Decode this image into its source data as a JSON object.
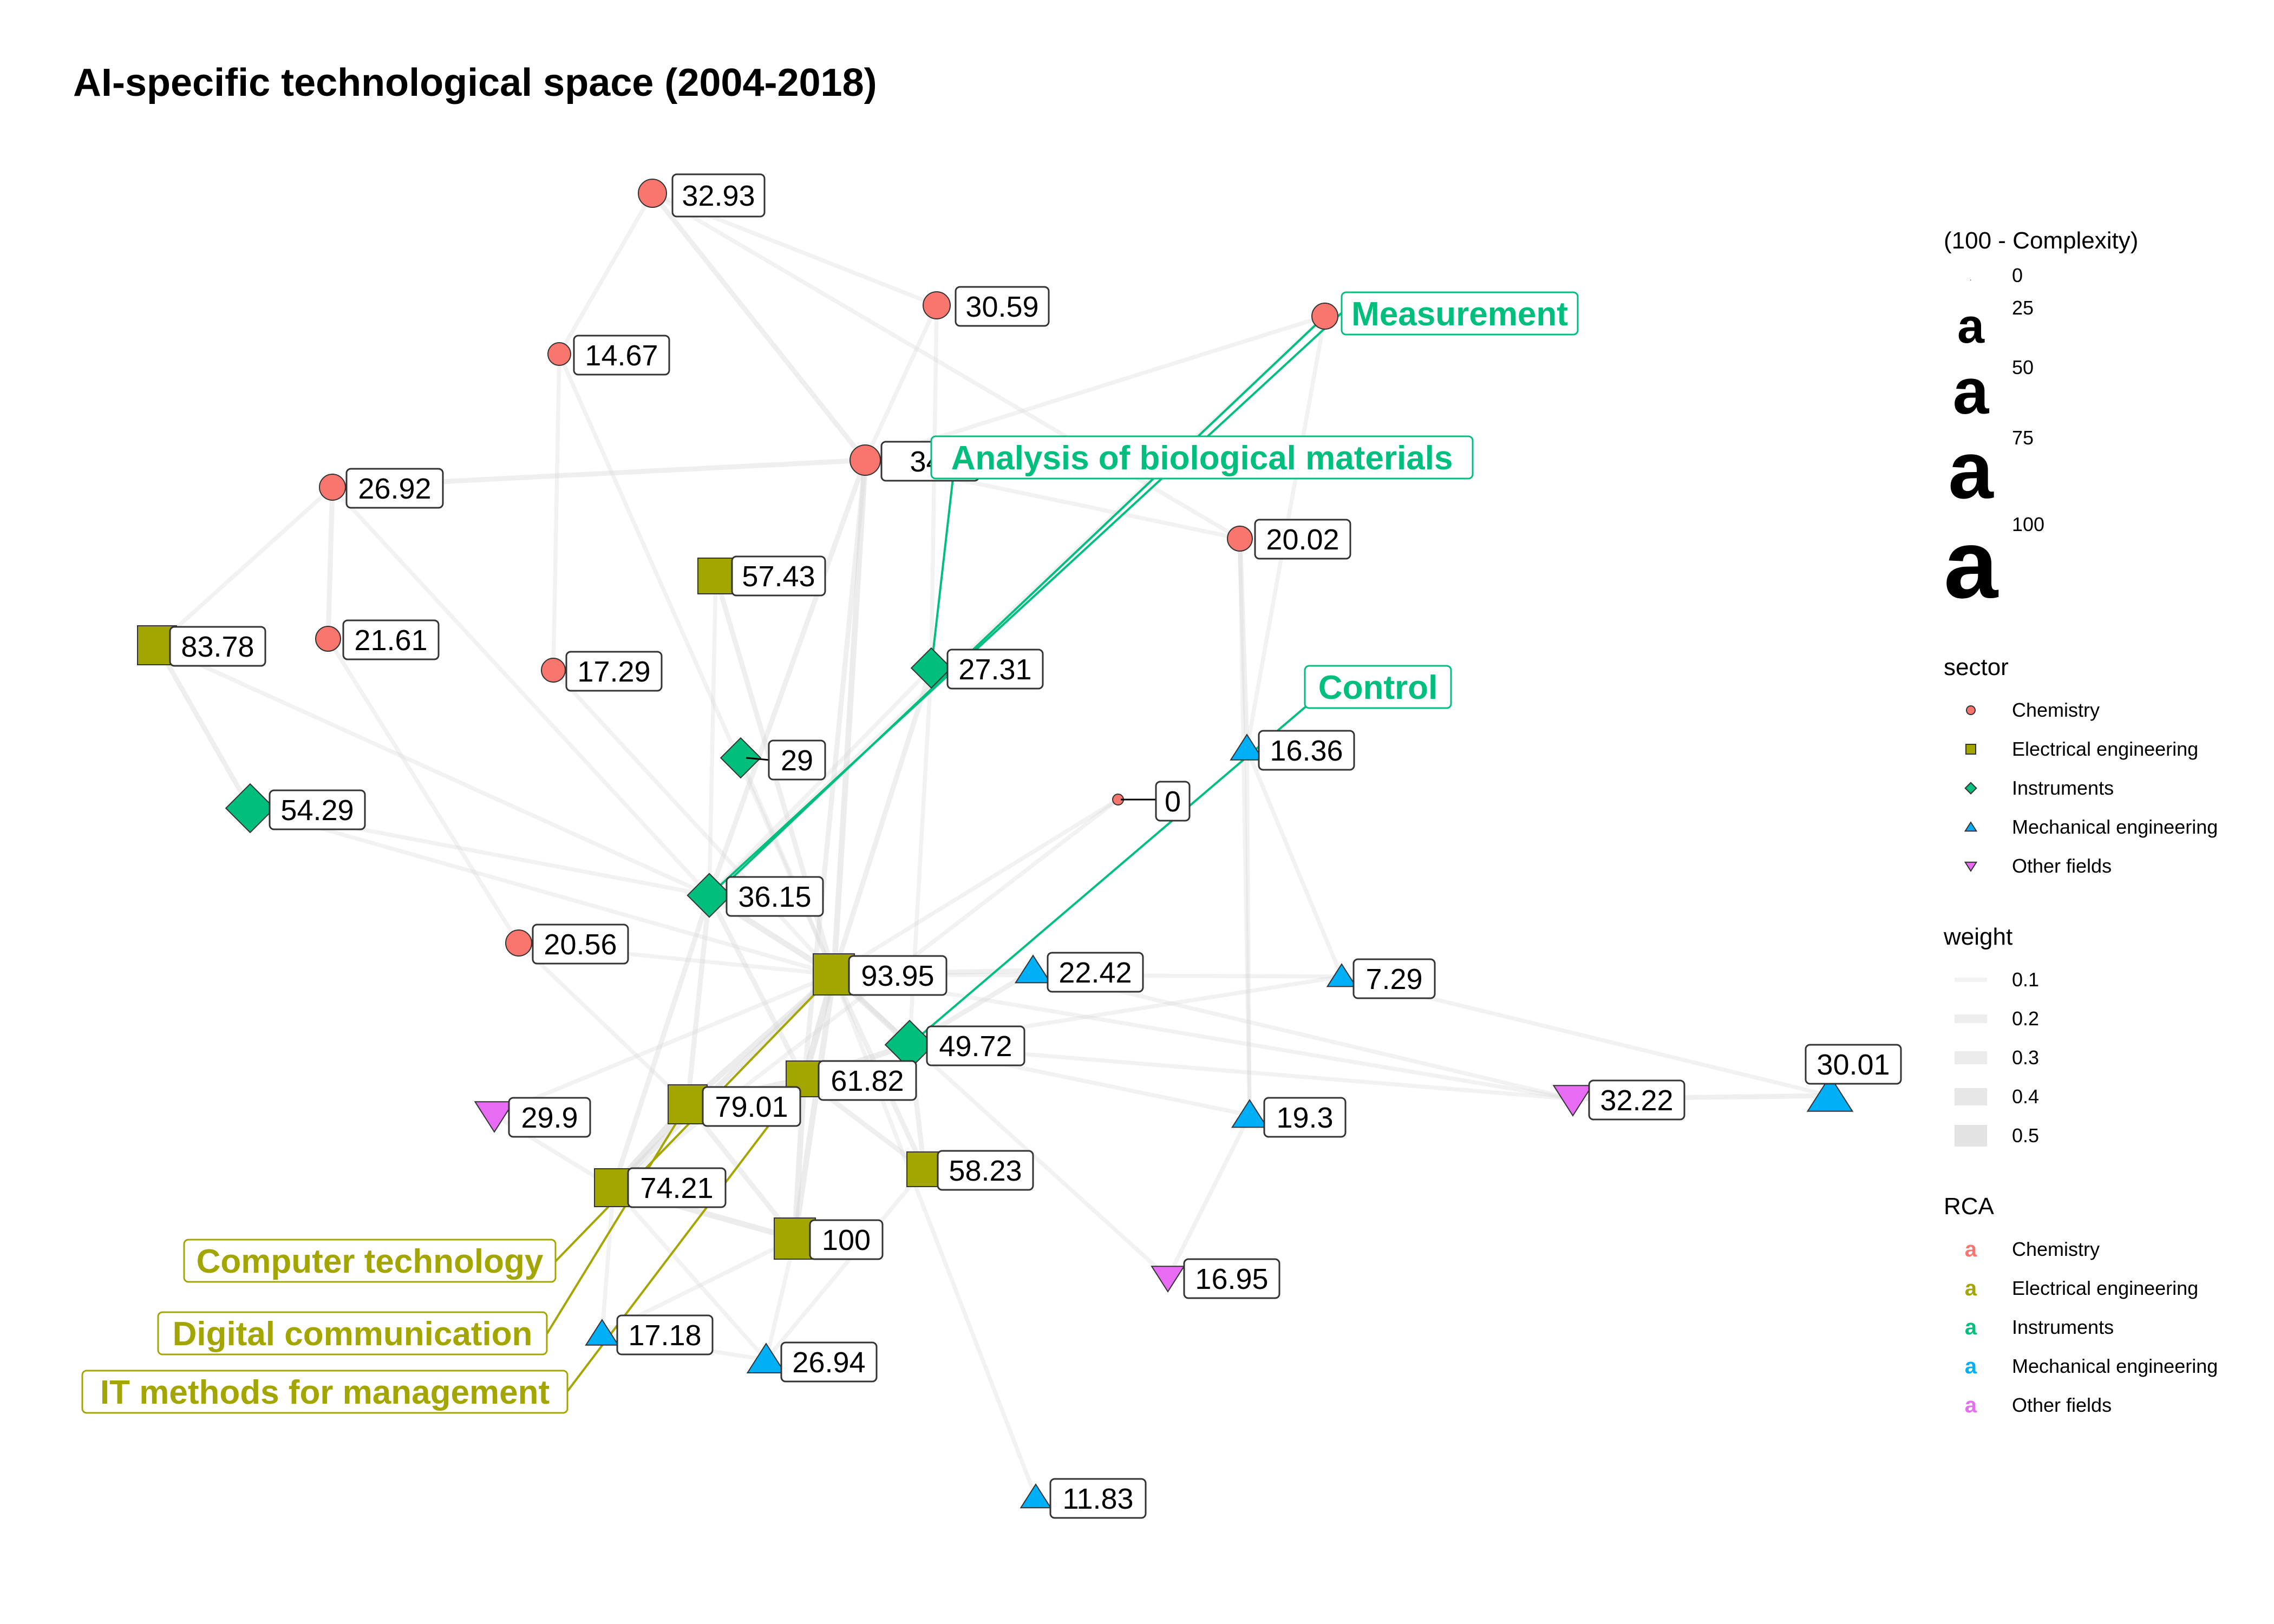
{
  "title": "AI-specific technological space (2004-2018)",
  "colors": {
    "Chemistry": "#F8766D",
    "Electrical engineering": "#A3A500",
    "Instruments": "#00BF7D",
    "Mechanical engineering": "#00B0F6",
    "Other fields": "#E76BF3",
    "edge": "#d9d9d9"
  },
  "shapes": {
    "Chemistry": "circle",
    "Electrical engineering": "square",
    "Instruments": "diamond",
    "Mechanical engineering": "triangle-up",
    "Other fields": "triangle-down"
  },
  "nodes": [
    {
      "id": "n1",
      "label": "32.93",
      "sector": "Chemistry"
    },
    {
      "id": "n2",
      "label": "30.59",
      "sector": "Chemistry"
    },
    {
      "id": "n3",
      "label": "14.67",
      "sector": "Chemistry"
    },
    {
      "id": "n4",
      "label": "",
      "sector": "Chemistry"
    },
    {
      "id": "n5",
      "label": "34.",
      "sector": "Chemistry"
    },
    {
      "id": "n6",
      "label": "26.92",
      "sector": "Chemistry"
    },
    {
      "id": "n7",
      "label": "20.02",
      "sector": "Chemistry"
    },
    {
      "id": "n8",
      "label": "57.43",
      "sector": "Electrical engineering"
    },
    {
      "id": "n9",
      "label": "83.78",
      "sector": "Electrical engineering"
    },
    {
      "id": "n10",
      "label": "21.61",
      "sector": "Chemistry"
    },
    {
      "id": "n11",
      "label": "17.29",
      "sector": "Chemistry"
    },
    {
      "id": "n12",
      "label": "27.31",
      "sector": "Instruments"
    },
    {
      "id": "n13",
      "label": "29",
      "sector": "Instruments"
    },
    {
      "id": "n14",
      "label": "16.36",
      "sector": "Mechanical engineering"
    },
    {
      "id": "n15",
      "label": "54.29",
      "sector": "Instruments"
    },
    {
      "id": "n16",
      "label": "0",
      "sector": "Chemistry"
    },
    {
      "id": "n17",
      "label": "36.15",
      "sector": "Instruments"
    },
    {
      "id": "n18",
      "label": "20.56",
      "sector": "Chemistry"
    },
    {
      "id": "n19",
      "label": "93.95",
      "sector": "Electrical engineering"
    },
    {
      "id": "n20",
      "label": "22.42",
      "sector": "Mechanical engineering"
    },
    {
      "id": "n21",
      "label": "7.29",
      "sector": "Mechanical engineering"
    },
    {
      "id": "n22",
      "label": "49.72",
      "sector": "Instruments"
    },
    {
      "id": "n23",
      "label": "61.82",
      "sector": "Electrical engineering"
    },
    {
      "id": "n24",
      "label": "79.01",
      "sector": "Electrical engineering"
    },
    {
      "id": "n25",
      "label": "29.9",
      "sector": "Other fields"
    },
    {
      "id": "n26",
      "label": "32.22",
      "sector": "Other fields"
    },
    {
      "id": "n27",
      "label": "30.01",
      "sector": "Mechanical engineering"
    },
    {
      "id": "n28",
      "label": "19.3",
      "sector": "Mechanical engineering"
    },
    {
      "id": "n29",
      "label": "74.21",
      "sector": "Electrical engineering"
    },
    {
      "id": "n30",
      "label": "58.23",
      "sector": "Electrical engineering"
    },
    {
      "id": "n31",
      "label": "100",
      "sector": "Electrical engineering"
    },
    {
      "id": "n32",
      "label": "16.95",
      "sector": "Other fields"
    },
    {
      "id": "n33",
      "label": "17.18",
      "sector": "Mechanical engineering"
    },
    {
      "id": "n34",
      "label": "26.94",
      "sector": "Mechanical engineering"
    },
    {
      "id": "n35",
      "label": "11.83",
      "sector": "Mechanical engineering"
    }
  ],
  "edges": [
    [
      "n1",
      "n3",
      0.1
    ],
    [
      "n1",
      "n5",
      0.2
    ],
    [
      "n1",
      "n2",
      0.1
    ],
    [
      "n1",
      "n7",
      0.1
    ],
    [
      "n3",
      "n11",
      0.1
    ],
    [
      "n3",
      "n19",
      0.1
    ],
    [
      "n2",
      "n5",
      0.1
    ],
    [
      "n2",
      "n12",
      0.1
    ],
    [
      "n5",
      "n4",
      0.1
    ],
    [
      "n5",
      "n7",
      0.1
    ],
    [
      "n6",
      "n5",
      0.2
    ],
    [
      "n6",
      "n9",
      0.1
    ],
    [
      "n6",
      "n10",
      0.2
    ],
    [
      "n6",
      "n17",
      0.1
    ],
    [
      "n9",
      "n15",
      0.2
    ],
    [
      "n9",
      "n17",
      0.1
    ],
    [
      "n15",
      "n17",
      0.1
    ],
    [
      "n15",
      "n19",
      0.1
    ],
    [
      "n10",
      "n18",
      0.1
    ],
    [
      "n11",
      "n19",
      0.1
    ],
    [
      "n8",
      "n19",
      0.2
    ],
    [
      "n8",
      "n17",
      0.1
    ],
    [
      "n5",
      "n19",
      0.3
    ],
    [
      "n5",
      "n23",
      0.2
    ],
    [
      "n5",
      "n17",
      0.2
    ],
    [
      "n12",
      "n19",
      0.2
    ],
    [
      "n12",
      "n22",
      0.1
    ],
    [
      "n13",
      "n19",
      0.1
    ],
    [
      "n7",
      "n14",
      0.2
    ],
    [
      "n7",
      "n28",
      0.1
    ],
    [
      "n4",
      "n14",
      0.1
    ],
    [
      "n4",
      "n17",
      0.1
    ],
    [
      "n14",
      "n21",
      0.1
    ],
    [
      "n14",
      "n28",
      0.1
    ],
    [
      "n16",
      "n19",
      0.1
    ],
    [
      "n16",
      "n29",
      0.1
    ],
    [
      "n17",
      "n19",
      0.3
    ],
    [
      "n17",
      "n24",
      0.2
    ],
    [
      "n17",
      "n29",
      0.2
    ],
    [
      "n17",
      "n23",
      0.2
    ],
    [
      "n18",
      "n19",
      0.1
    ],
    [
      "n18",
      "n24",
      0.1
    ],
    [
      "n19",
      "n22",
      0.3
    ],
    [
      "n19",
      "n23",
      0.4
    ],
    [
      "n19",
      "n24",
      0.3
    ],
    [
      "n19",
      "n29",
      0.3
    ],
    [
      "n19",
      "n31",
      0.3
    ],
    [
      "n19",
      "n30",
      0.2
    ],
    [
      "n19",
      "n20",
      0.2
    ],
    [
      "n19",
      "n21",
      0.1
    ],
    [
      "n19",
      "n26",
      0.1
    ],
    [
      "n19",
      "n32",
      0.1
    ],
    [
      "n19",
      "n35",
      0.1
    ],
    [
      "n22",
      "n23",
      0.3
    ],
    [
      "n22",
      "n20",
      0.2
    ],
    [
      "n22",
      "n21",
      0.1
    ],
    [
      "n22",
      "n28",
      0.1
    ],
    [
      "n22",
      "n26",
      0.1
    ],
    [
      "n23",
      "n24",
      0.3
    ],
    [
      "n23",
      "n31",
      0.3
    ],
    [
      "n23",
      "n30",
      0.2
    ],
    [
      "n24",
      "n29",
      0.4
    ],
    [
      "n24",
      "n31",
      0.2
    ],
    [
      "n29",
      "n31",
      0.3
    ],
    [
      "n29",
      "n25",
      0.1
    ],
    [
      "n29",
      "n33",
      0.1
    ],
    [
      "n29",
      "n34",
      0.1
    ],
    [
      "n31",
      "n34",
      0.1
    ],
    [
      "n31",
      "n33",
      0.1
    ],
    [
      "n30",
      "n22",
      0.2
    ],
    [
      "n30",
      "n34",
      0.1
    ],
    [
      "n26",
      "n27",
      0.2
    ],
    [
      "n21",
      "n27",
      0.1
    ],
    [
      "n28",
      "n32",
      0.1
    ],
    [
      "n33",
      "n34",
      0.1
    ],
    [
      "n25",
      "n19",
      0.1
    ],
    [
      "n20",
      "n26",
      0.1
    ],
    [
      "n12",
      "n17",
      0.1
    ]
  ],
  "callouts": [
    {
      "id": "c1",
      "text": "Measurement",
      "sector": "Instruments",
      "from": "n17",
      "to": "n4"
    },
    {
      "id": "c2",
      "text": "Analysis of biological materials",
      "sector": "Instruments",
      "from": "n12"
    },
    {
      "id": "c3",
      "text": "Control",
      "sector": "Instruments",
      "from": "n22"
    },
    {
      "id": "c4",
      "text": "Computer technology",
      "sector": "Electrical engineering",
      "from": "n19"
    },
    {
      "id": "c5",
      "text": "Digital communication",
      "sector": "Electrical engineering",
      "from": "n24"
    },
    {
      "id": "c6",
      "text": "IT methods for management",
      "sector": "Electrical engineering",
      "from": "n23"
    }
  ],
  "legend": {
    "complexity": {
      "title": "(100 - Complexity)",
      "glyph": "a",
      "values": [
        "0",
        "25",
        "50",
        "75",
        "100"
      ]
    },
    "sector": {
      "title": "sector",
      "items": [
        "Chemistry",
        "Electrical engineering",
        "Instruments",
        "Mechanical engineering",
        "Other fields"
      ]
    },
    "weight": {
      "title": "weight",
      "values": [
        "0.1",
        "0.2",
        "0.3",
        "0.4",
        "0.5"
      ]
    },
    "rca": {
      "title": "RCA",
      "glyph": "a",
      "items": [
        "Chemistry",
        "Electrical engineering",
        "Instruments",
        "Mechanical engineering",
        "Other fields"
      ]
    }
  }
}
